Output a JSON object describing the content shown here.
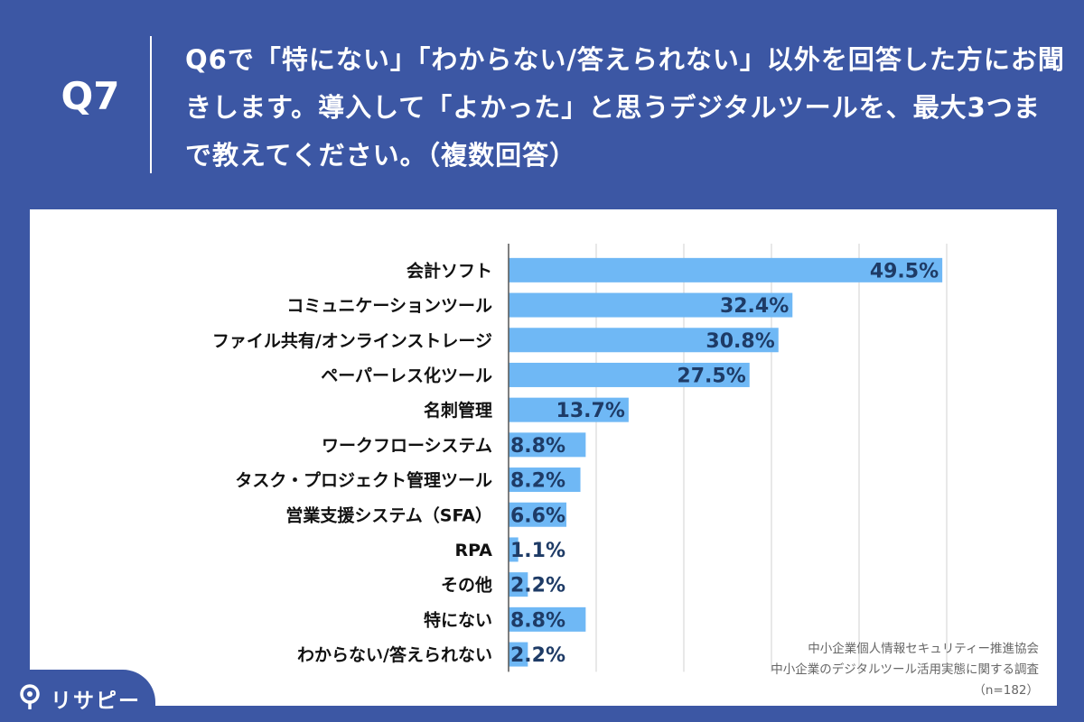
{
  "header": {
    "question_number": "Q7",
    "question_text": "Q6で「特にない」「わからない/答えられない」以外を回答した方にお聞きします。導入して「よかった」と思うデジタルツールを、最大3つまで教えてください。（複数回答）"
  },
  "chart_data": {
    "type": "bar",
    "orientation": "horizontal",
    "categories": [
      "会計ソフト",
      "コミュニケーションツール",
      "ファイル共有/オンラインストレージ",
      "ペーパーレス化ツール",
      "名刺管理",
      "ワークフローシステム",
      "タスク・プロジェクト管理ツール",
      "営業支援システム（SFA）",
      "RPA",
      "その他",
      "特にない",
      "わからない/答えられない"
    ],
    "values": [
      49.5,
      32.4,
      30.8,
      27.5,
      13.7,
      8.8,
      8.2,
      6.6,
      1.1,
      2.2,
      8.8,
      2.2
    ],
    "value_labels": [
      "49.5%",
      "32.4%",
      "30.8%",
      "27.5%",
      "13.7%",
      "8.8%",
      "8.2%",
      "6.6%",
      "1.1%",
      "2.2%",
      "8.8%",
      "2.2%"
    ],
    "xlim": [
      0,
      50
    ],
    "grid": true,
    "bar_color": "#6fb8f5",
    "label_color": "#1e3b66"
  },
  "source": {
    "line1": "中小企業個人情報セキュリティー推進協会",
    "line2": "中小企業のデジタルツール活用実態に関する調査",
    "line3": "（n=182）"
  },
  "logo": {
    "text": "リサピー"
  },
  "colors": {
    "background": "#3c57a4",
    "panel": "#ffffff"
  }
}
